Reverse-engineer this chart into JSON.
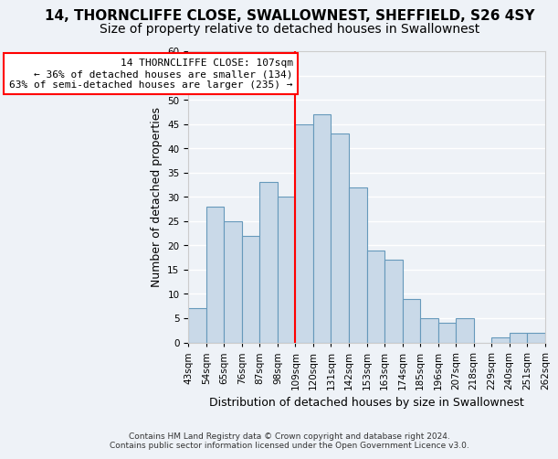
{
  "title": "14, THORNCLIFFE CLOSE, SWALLOWNEST, SHEFFIELD, S26 4SY",
  "subtitle": "Size of property relative to detached houses in Swallownest",
  "xlabel": "Distribution of detached houses by size in Swallownest",
  "ylabel": "Number of detached properties",
  "categories": [
    "43sqm",
    "54sqm",
    "65sqm",
    "76sqm",
    "87sqm",
    "98sqm",
    "109sqm",
    "120sqm",
    "131sqm",
    "142sqm",
    "153sqm",
    "163sqm",
    "174sqm",
    "185sqm",
    "196sqm",
    "207sqm",
    "218sqm",
    "229sqm",
    "240sqm",
    "251sqm",
    "262sqm"
  ],
  "bar_heights": [
    7,
    28,
    25,
    22,
    33,
    30,
    45,
    47,
    43,
    32,
    19,
    17,
    9,
    5,
    4,
    5,
    0,
    1,
    2,
    2
  ],
  "bar_color": "#c9d9e8",
  "bar_edge_color": "#6699bb",
  "vline_bin_index": 6,
  "annotation_text": "14 THORNCLIFFE CLOSE: 107sqm\n← 36% of detached houses are smaller (134)\n63% of semi-detached houses are larger (235) →",
  "annotation_box_color": "white",
  "annotation_box_edge_color": "red",
  "vline_color": "red",
  "ylim": [
    0,
    60
  ],
  "yticks": [
    0,
    5,
    10,
    15,
    20,
    25,
    30,
    35,
    40,
    45,
    50,
    55,
    60
  ],
  "footer": "Contains HM Land Registry data © Crown copyright and database right 2024.\nContains public sector information licensed under the Open Government Licence v3.0.",
  "background_color": "#eef2f7",
  "grid_color": "#ffffff",
  "title_fontsize": 11,
  "subtitle_fontsize": 10,
  "xlabel_fontsize": 9,
  "ylabel_fontsize": 9,
  "tick_fontsize": 7.5,
  "annotation_fontsize": 8
}
